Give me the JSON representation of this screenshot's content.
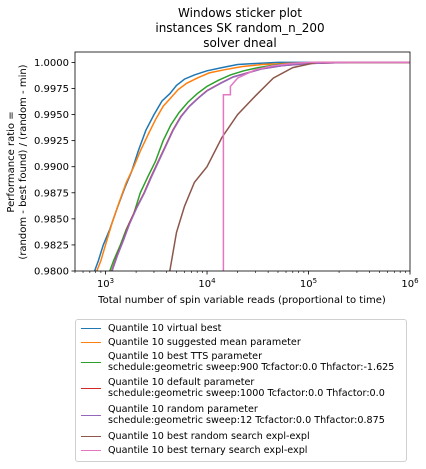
{
  "title_lines": [
    "Windows sticker plot",
    "instances SK random_n_200",
    "solver dneal"
  ],
  "chart_data": {
    "type": "line",
    "title": "Windows sticker plot\ninstances SK random_n_200\nsolver dneal",
    "xlabel": "Total number of spin variable reads (proportional to time)",
    "ylabel_lines": [
      "Performance ratio =",
      "(random - best found) / (random - min)"
    ],
    "xscale": "log",
    "xlim": [
      500,
      1000000
    ],
    "ylim": [
      0.98,
      1.001
    ],
    "x_ticks": [
      {
        "value": 1000,
        "base": "10",
        "exp": "3"
      },
      {
        "value": 10000,
        "base": "10",
        "exp": "4"
      },
      {
        "value": 100000,
        "base": "10",
        "exp": "5"
      },
      {
        "value": 1000000,
        "base": "10",
        "exp": "6"
      }
    ],
    "y_ticks": [
      0.98,
      0.9825,
      0.985,
      0.9875,
      0.99,
      0.9925,
      0.995,
      0.9975,
      1.0
    ],
    "y_tick_labels": [
      "0.9800",
      "0.9825",
      "0.9850",
      "0.9875",
      "0.9900",
      "0.9925",
      "0.9950",
      "0.9975",
      "1.0000"
    ],
    "grid": false,
    "legend_position": "below",
    "series": [
      {
        "name": "Quantile 10 virtual best",
        "color": "#1f77b4",
        "x": [
          780,
          850,
          950,
          1100,
          1300,
          1550,
          1800,
          2100,
          2500,
          3000,
          3600,
          4300,
          5000,
          6000,
          7500,
          10000,
          14000,
          20000,
          30000,
          50000,
          100000,
          1000000
        ],
        "y": [
          0.98,
          0.981,
          0.9825,
          0.984,
          0.986,
          0.988,
          0.9895,
          0.9915,
          0.9935,
          0.995,
          0.9963,
          0.997,
          0.9978,
          0.9984,
          0.9988,
          0.9992,
          0.9995,
          0.9998,
          0.9999,
          1.0,
          1.0,
          1.0
        ]
      },
      {
        "name": "Quantile 10 suggested mean parameter",
        "color": "#ff7f0e",
        "x": [
          820,
          900,
          1000,
          1150,
          1350,
          1600,
          1900,
          2200,
          2600,
          3100,
          3700,
          4400,
          5200,
          6300,
          8000,
          10500,
          15000,
          22000,
          35000,
          60000,
          120000,
          1000000
        ],
        "y": [
          0.98,
          0.981,
          0.9825,
          0.9845,
          0.9865,
          0.9885,
          0.99,
          0.9915,
          0.993,
          0.9945,
          0.9958,
          0.9966,
          0.9974,
          0.998,
          0.9985,
          0.999,
          0.9993,
          0.9996,
          0.9998,
          0.9999,
          1.0,
          1.0
        ]
      },
      {
        "name": "Quantile 10 best TTS parameter",
        "name2": "schedule:geometric sweep:900 Tcfactor:0.0 Thfactor:-1.625",
        "color": "#2ca02c",
        "x": [
          1100,
          1200,
          1400,
          1600,
          1900,
          2200,
          2600,
          3100,
          3700,
          4400,
          5300,
          6500,
          8000,
          10000,
          13000,
          17000,
          23000,
          32000,
          50000,
          90000,
          200000,
          1000000
        ],
        "y": [
          0.98,
          0.981,
          0.9825,
          0.984,
          0.9855,
          0.9875,
          0.989,
          0.9905,
          0.9925,
          0.994,
          0.9952,
          0.9962,
          0.997,
          0.9977,
          0.9983,
          0.9988,
          0.9992,
          0.9995,
          0.9998,
          0.9999,
          1.0,
          1.0
        ]
      },
      {
        "name": "Quantile 10 default parameter",
        "name2": "schedule:geometric sweep:1000 Tcfactor:0.0 Thfactor:0.0",
        "color": "#d62728",
        "x": [
          1150,
          1300,
          1500,
          1700,
          2000,
          2400,
          2800,
          3300,
          3900,
          4600,
          5500,
          6700,
          8200,
          10000,
          13500,
          18000,
          25000,
          35000,
          55000,
          100000,
          250000,
          1000000
        ],
        "y": [
          0.98,
          0.9815,
          0.983,
          0.9845,
          0.986,
          0.9875,
          0.989,
          0.9905,
          0.992,
          0.9935,
          0.9948,
          0.9958,
          0.9966,
          0.9973,
          0.998,
          0.9986,
          0.999,
          0.9994,
          0.9997,
          0.9999,
          1.0,
          1.0
        ]
      },
      {
        "name": "Quantile 10 random parameter",
        "name2": "schedule:geometric sweep:12 Tcfactor:0.0 Thfactor:0.875",
        "color": "#9467bd",
        "x": [
          1160,
          1310,
          1510,
          1720,
          2020,
          2420,
          2830,
          3330,
          3930,
          4640,
          5550,
          6750,
          8250,
          10100,
          13600,
          18100,
          25200,
          35300,
          55500,
          101000,
          252000,
          1000000
        ],
        "y": [
          0.98,
          0.9815,
          0.983,
          0.9845,
          0.986,
          0.9875,
          0.989,
          0.9905,
          0.992,
          0.9935,
          0.9948,
          0.9958,
          0.9966,
          0.9973,
          0.998,
          0.9986,
          0.999,
          0.9994,
          0.9997,
          0.9999,
          1.0,
          1.0
        ]
      },
      {
        "name": "Quantile 10  best random search expl-expl",
        "color": "#8c564b",
        "x": [
          4300,
          5000,
          6000,
          7500,
          10000,
          14000,
          20000,
          30000,
          45000,
          70000,
          120000,
          1000000
        ],
        "y": [
          0.98,
          0.9837,
          0.9862,
          0.9885,
          0.99,
          0.9928,
          0.995,
          0.9968,
          0.9985,
          0.9995,
          1.0,
          1.0
        ]
      },
      {
        "name": "Quantile 10  best ternary search expl-expl",
        "color": "#e377c2",
        "x": [
          14500,
          14500,
          14600,
          17000,
          17000,
          20000,
          30000,
          45000,
          70000,
          100000,
          200000,
          1000000
        ],
        "y": [
          0.98,
          0.9969,
          0.9969,
          0.9969,
          0.9977,
          0.9985,
          0.9993,
          0.9997,
          0.9999,
          1.0,
          1.0,
          1.0
        ]
      }
    ]
  }
}
